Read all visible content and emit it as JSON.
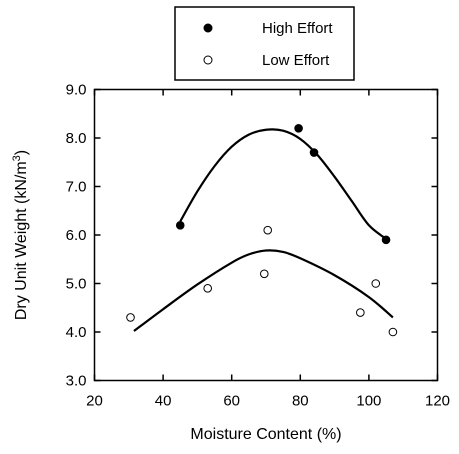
{
  "chart_data": {
    "type": "scatter",
    "xlabel": "Moisture Content (%)",
    "ylabel_main": "Dry Unit Weight (kN/m",
    "ylabel_sup": "3",
    "ylabel_end": ")",
    "xlim": [
      20,
      120
    ],
    "ylim": [
      3.0,
      9.0
    ],
    "x_ticks": [
      20,
      40,
      60,
      80,
      100,
      120
    ],
    "x_tick_labels": [
      "20",
      "40",
      "60",
      "80",
      "100",
      "120"
    ],
    "y_ticks": [
      3,
      4,
      5,
      6,
      7,
      8,
      9
    ],
    "y_tick_labels": [
      "3.0",
      "4.0",
      "5.0",
      "6.0",
      "7.0",
      "8.0",
      "9.0"
    ],
    "grid": false,
    "legend_position": "top-center, outside plot",
    "series": [
      {
        "name": "High Effort",
        "marker": "filled-circle",
        "color": "#000000",
        "points": [
          {
            "x": 45,
            "y": 6.2
          },
          {
            "x": 79.5,
            "y": 8.2
          },
          {
            "x": 84,
            "y": 7.7
          },
          {
            "x": 105,
            "y": 5.9
          }
        ],
        "fit_curve": [
          [
            45,
            6.28
          ],
          [
            50,
            6.9
          ],
          [
            55,
            7.42
          ],
          [
            60,
            7.82
          ],
          [
            65,
            8.07
          ],
          [
            70,
            8.17
          ],
          [
            75,
            8.15
          ],
          [
            80,
            7.98
          ],
          [
            85,
            7.65
          ],
          [
            90,
            7.2
          ],
          [
            95,
            6.7
          ],
          [
            100,
            6.2
          ],
          [
            105,
            5.92
          ]
        ]
      },
      {
        "name": "Low Effort",
        "marker": "open-circle",
        "color": "#000000",
        "points": [
          {
            "x": 30.5,
            "y": 4.3
          },
          {
            "x": 53,
            "y": 4.9
          },
          {
            "x": 69.5,
            "y": 5.2
          },
          {
            "x": 70.5,
            "y": 6.1
          },
          {
            "x": 97.5,
            "y": 4.4
          },
          {
            "x": 102,
            "y": 5.0
          },
          {
            "x": 107,
            "y": 4.0
          }
        ],
        "fit_curve": [
          [
            31.5,
            4.02
          ],
          [
            40,
            4.47
          ],
          [
            50,
            4.98
          ],
          [
            60,
            5.43
          ],
          [
            65,
            5.6
          ],
          [
            70,
            5.68
          ],
          [
            75,
            5.65
          ],
          [
            80,
            5.52
          ],
          [
            90,
            5.17
          ],
          [
            100,
            4.72
          ],
          [
            107,
            4.3
          ]
        ]
      }
    ]
  }
}
